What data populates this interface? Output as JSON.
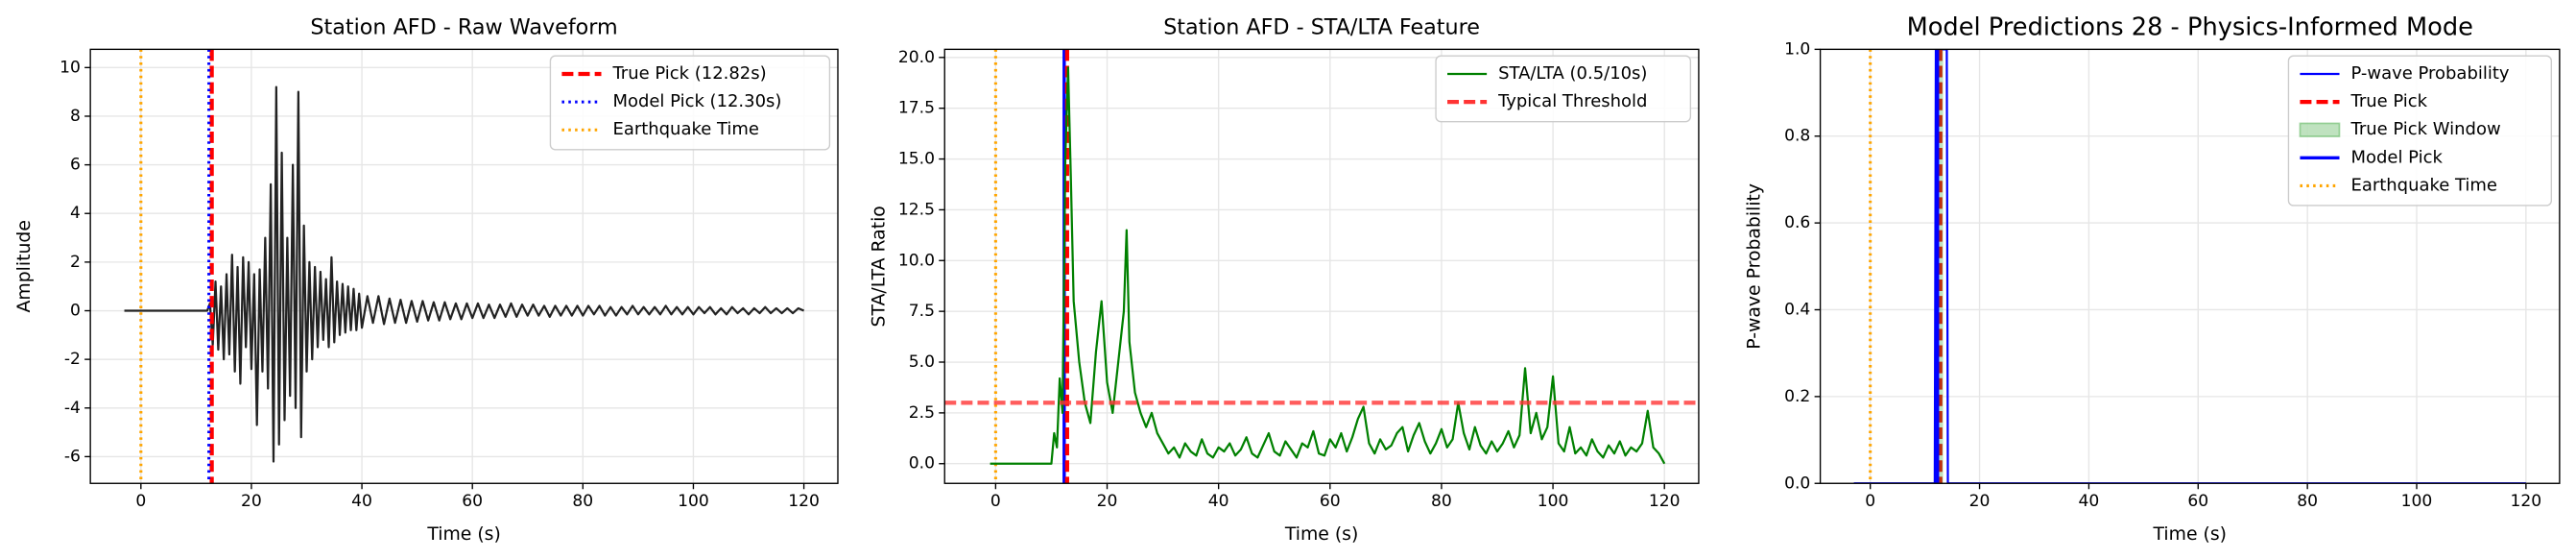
{
  "chart_data": [
    {
      "type": "line",
      "title": "Station AFD - Raw Waveform",
      "xlabel": "Time (s)",
      "ylabel": "Amplitude",
      "xlim": [
        -9.15,
        126.15
      ],
      "ylim": [
        -7.1,
        10.75
      ],
      "xticks": [
        0,
        20,
        40,
        60,
        80,
        100,
        120
      ],
      "yticks": [
        -6,
        -4,
        -2,
        0,
        2,
        4,
        6,
        8,
        10
      ],
      "grid": true,
      "legend": "upper right",
      "series": [
        {
          "kind": "line",
          "color": "#222222",
          "style": "solid",
          "x": [
            -3,
            12,
            12.5,
            13,
            13.5,
            14,
            14.5,
            15,
            15.5,
            16,
            16.5,
            17,
            17.5,
            18,
            18.5,
            19,
            19.5,
            20,
            20.5,
            21,
            21.5,
            22,
            22.5,
            23,
            23.5,
            24,
            24.5,
            25,
            25.5,
            26,
            26.5,
            27,
            27.5,
            28,
            28.5,
            29,
            29.5,
            30,
            30.5,
            31,
            31.5,
            32,
            32.5,
            33,
            33.5,
            34,
            34.5,
            35,
            35.5,
            36,
            36.5,
            37,
            37.5,
            38,
            38.5,
            39,
            39.5,
            40,
            41,
            42,
            43,
            44,
            45,
            46,
            47,
            48,
            49,
            50,
            51,
            52,
            53,
            54,
            55,
            56,
            57,
            58,
            59,
            60,
            61,
            62,
            63,
            64,
            65,
            66,
            67,
            68,
            69,
            70,
            71,
            72,
            73,
            74,
            75,
            76,
            77,
            78,
            79,
            80,
            81,
            82,
            83,
            84,
            85,
            86,
            87,
            88,
            89,
            90,
            91,
            92,
            93,
            94,
            95,
            96,
            97,
            98,
            99,
            100,
            101,
            102,
            103,
            104,
            105,
            106,
            107,
            108,
            109,
            110,
            111,
            112,
            113,
            114,
            115,
            116,
            117,
            118,
            119,
            120
          ],
          "values": [
            0,
            0,
            0.3,
            -1.4,
            1.2,
            -1.6,
            1.0,
            -2.0,
            1.5,
            -1.8,
            2.3,
            -2.5,
            1.8,
            -3.0,
            2.2,
            -1.5,
            2.0,
            -2.4,
            1.5,
            -4.7,
            1.7,
            -2.5,
            3.0,
            -3.2,
            5.2,
            -6.2,
            9.2,
            -5.5,
            6.5,
            -4.5,
            3.0,
            -3.5,
            6.0,
            -4.0,
            9.0,
            -5.2,
            3.5,
            -2.5,
            2.0,
            -2.0,
            1.8,
            -1.5,
            1.6,
            -1.2,
            1.3,
            -1.5,
            2.2,
            -1.3,
            1.2,
            -1.0,
            1.1,
            -0.9,
            1.0,
            -0.8,
            0.9,
            -0.8,
            0.7,
            -0.7,
            0.6,
            -0.5,
            0.6,
            -0.55,
            0.5,
            -0.5,
            0.45,
            -0.5,
            0.4,
            -0.45,
            0.4,
            -0.4,
            0.35,
            -0.4,
            0.35,
            -0.35,
            0.3,
            -0.35,
            0.3,
            -0.3,
            0.3,
            -0.3,
            0.25,
            -0.3,
            0.25,
            -0.25,
            0.3,
            -0.25,
            0.25,
            -0.2,
            0.25,
            -0.2,
            0.2,
            -0.25,
            0.2,
            -0.2,
            0.2,
            -0.2,
            0.2,
            -0.2,
            0.2,
            -0.15,
            0.2,
            -0.2,
            0.15,
            -0.2,
            0.15,
            -0.15,
            0.2,
            -0.15,
            0.15,
            -0.15,
            0.15,
            -0.15,
            0.2,
            -0.15,
            0.15,
            -0.15,
            0.15,
            -0.15,
            0.15,
            -0.1,
            0.15,
            -0.15,
            0.1,
            -0.15,
            0.15,
            -0.1,
            0.1,
            -0.15,
            0.1,
            -0.1,
            0.15,
            -0.1,
            0.1,
            -0.1,
            0.1,
            -0.1,
            0.1,
            0
          ]
        },
        {
          "kind": "vline",
          "name": "True Pick (12.82s)",
          "color": "#ff0000",
          "style": "dashed",
          "x": 12.82
        },
        {
          "kind": "vline",
          "name": "Model Pick (12.30s)",
          "color": "#0000ff",
          "style": "dotted",
          "x": 12.3
        },
        {
          "kind": "vline",
          "name": "Earthquake Time",
          "color": "#ffa500",
          "style": "dotted",
          "x": 0
        }
      ]
    },
    {
      "type": "line",
      "title": "Station AFD - STA/LTA Feature",
      "xlabel": "Time (s)",
      "ylabel": "STA/LTA Ratio",
      "xlim": [
        -9.15,
        126.15
      ],
      "ylim": [
        -0.97,
        20.4
      ],
      "xticks": [
        0,
        20,
        40,
        60,
        80,
        100,
        120
      ],
      "yticks": [
        {
          "value": 0,
          "label": "0.0"
        },
        {
          "value": 2.5,
          "label": "2.5"
        },
        {
          "value": 5,
          "label": "5.0"
        },
        {
          "value": 7.5,
          "label": "7.5"
        },
        {
          "value": 10,
          "label": "10.0"
        },
        {
          "value": 12.5,
          "label": "12.5"
        },
        {
          "value": 15,
          "label": "15.0"
        },
        {
          "value": 17.5,
          "label": "17.5"
        },
        {
          "value": 20,
          "label": "20.0"
        }
      ],
      "grid": true,
      "legend": "upper right",
      "series": [
        {
          "kind": "vline",
          "color": "#ffa500",
          "style": "dotted",
          "x": 0
        },
        {
          "kind": "vline",
          "color": "#0000ff",
          "style": "solid",
          "x": 12.3
        },
        {
          "kind": "vline",
          "color": "#ff0000",
          "style": "dashed",
          "x": 12.82
        },
        {
          "kind": "line",
          "name": "STA/LTA (0.5/10s)",
          "color": "#008000",
          "style": "solid",
          "x": [
            -1,
            10,
            10.5,
            11,
            11.5,
            12,
            12.5,
            13,
            13.5,
            14,
            15,
            16,
            17,
            18,
            19,
            20,
            21,
            22,
            23,
            23.5,
            24,
            25,
            26,
            27,
            28,
            29,
            30,
            31,
            32,
            33,
            34,
            35,
            36,
            37,
            38,
            39,
            40,
            41,
            42,
            43,
            44,
            45,
            46,
            47,
            48,
            49,
            50,
            51,
            52,
            53,
            54,
            55,
            56,
            57,
            58,
            59,
            60,
            61,
            62,
            63,
            64,
            65,
            66,
            67,
            68,
            69,
            70,
            71,
            72,
            73,
            74,
            75,
            76,
            77,
            78,
            79,
            80,
            81,
            82,
            83,
            84,
            85,
            86,
            87,
            88,
            89,
            90,
            91,
            92,
            93,
            94,
            95,
            96,
            97,
            98,
            99,
            100,
            101,
            102,
            103,
            104,
            105,
            106,
            107,
            108,
            109,
            110,
            111,
            112,
            113,
            114,
            115,
            116,
            117,
            118,
            119,
            120
          ],
          "values": [
            0,
            0,
            1.5,
            0.8,
            4.2,
            2.5,
            15,
            19.5,
            14,
            8,
            5,
            3,
            2,
            5.5,
            8,
            4,
            2.5,
            5,
            7.5,
            11.5,
            6,
            3.5,
            2.5,
            1.8,
            2.5,
            1.5,
            1.0,
            0.5,
            0.8,
            0.3,
            1.0,
            0.6,
            0.4,
            1.2,
            0.5,
            0.3,
            0.8,
            0.6,
            1.0,
            0.4,
            0.7,
            1.3,
            0.5,
            0.3,
            0.9,
            1.5,
            0.6,
            0.4,
            1.1,
            0.7,
            0.3,
            1.0,
            0.8,
            1.6,
            0.5,
            0.4,
            1.2,
            0.8,
            1.5,
            0.6,
            1.3,
            2.2,
            2.8,
            1.0,
            0.5,
            1.2,
            0.7,
            0.9,
            1.5,
            1.8,
            0.6,
            1.4,
            2.0,
            1.1,
            0.5,
            1.0,
            1.7,
            0.8,
            1.2,
            3.0,
            1.5,
            0.7,
            1.8,
            0.9,
            0.5,
            1.1,
            0.6,
            1.0,
            1.6,
            0.8,
            1.4,
            4.7,
            1.5,
            2.5,
            1.2,
            1.8,
            4.3,
            1.0,
            0.6,
            1.8,
            0.5,
            0.8,
            0.4,
            1.2,
            0.6,
            0.3,
            0.9,
            0.5,
            1.1,
            0.4,
            0.8,
            0.6,
            1.0,
            2.6,
            0.8,
            0.5,
            0
          ]
        },
        {
          "kind": "hline",
          "name": "Typical Threshold",
          "color": "#ff3333",
          "style": "dashed",
          "value": 3.0
        }
      ]
    },
    {
      "type": "line",
      "title": "Model Predictions 28 - Physics-Informed Mode",
      "xlabel": "Time (s)",
      "ylabel": "P-wave Probability",
      "xlim": [
        -9.15,
        126.15
      ],
      "ylim": [
        0,
        1
      ],
      "xticks": [
        0,
        20,
        40,
        60,
        80,
        100,
        120
      ],
      "yticks": [
        {
          "value": 0,
          "label": "0.0"
        },
        {
          "value": 0.2,
          "label": "0.2"
        },
        {
          "value": 0.4,
          "label": "0.4"
        },
        {
          "value": 0.6,
          "label": "0.6"
        },
        {
          "value": 0.8,
          "label": "0.8"
        },
        {
          "value": 1,
          "label": "1.0"
        }
      ],
      "grid": true,
      "legend": "upper right",
      "series": [
        {
          "kind": "line",
          "name": "P-wave Probability",
          "color": "#0000ff",
          "style": "solid",
          "x": [
            -3,
            11.8,
            12.0,
            14.0,
            14.2,
            120
          ],
          "values": [
            0,
            0,
            1,
            1,
            0,
            0
          ]
        },
        {
          "kind": "vline",
          "name": "True Pick",
          "color": "#ff0000",
          "style": "dashed",
          "x": 12.82
        },
        {
          "kind": "span",
          "name": "True Pick Window",
          "color": "#2ca02c",
          "xrange": [
            12.32,
            13.32
          ]
        },
        {
          "kind": "vline",
          "name": "Model Pick",
          "color": "#0000ff",
          "style": "solid",
          "x": 12.3
        },
        {
          "kind": "vline",
          "name": "Earthquake Time",
          "color": "#ffa500",
          "style": "dotted",
          "x": 0
        }
      ]
    }
  ]
}
